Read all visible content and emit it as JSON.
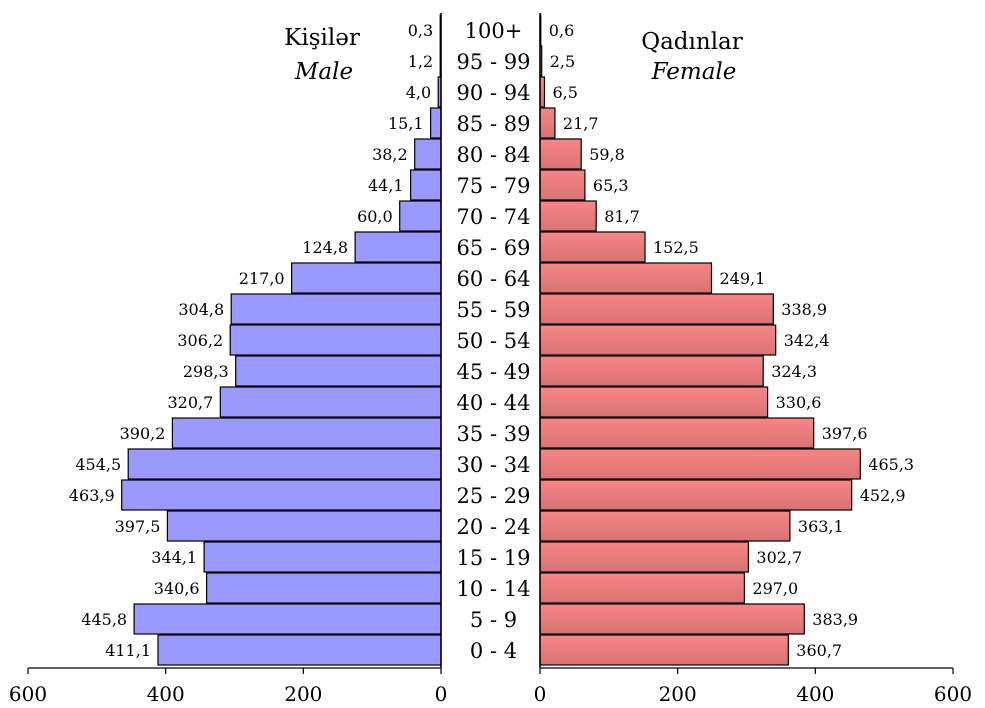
{
  "chart_data": {
    "type": "bar",
    "orientation": "population-pyramid",
    "categories": [
      "100+",
      "95 - 99",
      "90 - 94",
      "85 - 89",
      "80 - 84",
      "75 - 79",
      "70 - 74",
      "65 - 69",
      "60 - 64",
      "55 - 59",
      "50 - 54",
      "45 - 49",
      "40 - 44",
      "35 - 39",
      "30 - 34",
      "25 - 29",
      "20 - 24",
      "15 - 19",
      "10 - 14",
      "5 - 9",
      "0 - 4"
    ],
    "series": [
      {
        "name": "Kişilər",
        "name_en": "Male",
        "side": "left",
        "color": "#9999ff",
        "values": [
          0.3,
          1.2,
          4.0,
          15.1,
          38.2,
          44.1,
          60.0,
          124.8,
          217.0,
          304.8,
          306.2,
          298.3,
          320.7,
          390.2,
          454.5,
          463.9,
          397.5,
          344.1,
          340.6,
          445.8,
          411.1
        ],
        "labels": [
          "0,3",
          "1,2",
          "4,0",
          "15,1",
          "38,2",
          "44,1",
          "60,0",
          "124,8",
          "217,0",
          "304,8",
          "306,2",
          "298,3",
          "320,7",
          "390,2",
          "454,5",
          "463,9",
          "397,5",
          "344,1",
          "340,6",
          "445,8",
          "411,1"
        ]
      },
      {
        "name": "Qadınlar",
        "name_en": "Female",
        "side": "right",
        "color": "#f08080",
        "values": [
          0.6,
          2.5,
          6.5,
          21.7,
          59.8,
          65.3,
          81.7,
          152.5,
          249.1,
          338.9,
          342.4,
          324.3,
          330.6,
          397.6,
          465.3,
          452.9,
          363.1,
          302.7,
          297.0,
          383.9,
          360.7
        ],
        "labels": [
          "0,6",
          "2,5",
          "6,5",
          "21,7",
          "59,8",
          "65,3",
          "81,7",
          "152,5",
          "249,1",
          "338,9",
          "342,4",
          "324,3",
          "330,6",
          "397,6",
          "465,3",
          "452,9",
          "363,1",
          "302,7",
          "297,0",
          "383,9",
          "360,7"
        ]
      }
    ],
    "xlim": [
      0,
      600
    ],
    "ticks": [
      0,
      200,
      400,
      600
    ],
    "tick_labels": [
      "0",
      "200",
      "400",
      "600"
    ],
    "grid": false,
    "legend": "none"
  }
}
